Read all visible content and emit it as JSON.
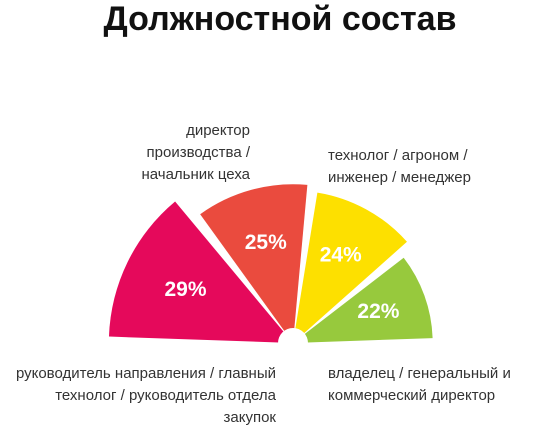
{
  "chart_data": {
    "type": "half-pie",
    "title": "Должностной состав",
    "categories": [
      "руководитель направления / главный технолог / руководитель отдела закупок",
      "директор производства / начальник цеха",
      "технолог / агроном / инженер / менеджер",
      "владелец / генеральный и коммерческий директор"
    ],
    "values": [
      29,
      25,
      24,
      22
    ],
    "value_labels": [
      "29%",
      "25%",
      "24%",
      "22%"
    ],
    "colors": [
      "#e5095b",
      "#ea4b3e",
      "#fde000",
      "#97c93d"
    ]
  }
}
